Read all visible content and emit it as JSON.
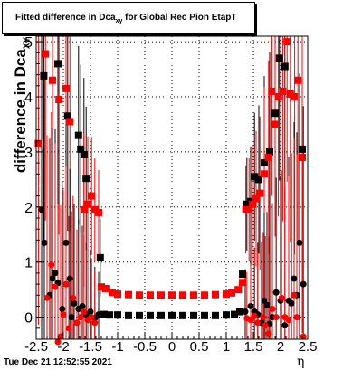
{
  "title": {
    "main": "Fitted difference in Dca",
    "sub": "xy",
    "rest": " for Global Rec Pion EtapT"
  },
  "ylabel": {
    "main": "difference in Dca",
    "sub": "XY"
  },
  "xlabel": "η",
  "timestamp": "Tue Dec 21 12:52:55 2021",
  "chart_data": {
    "type": "scatter",
    "title": "Fitted difference in Dca_xy for Global Rec Pion EtapT",
    "xlabel": "η",
    "ylabel": "difference in Dca_XY",
    "xlim": [
      -2.5,
      2.5
    ],
    "ylim": [
      -0.4,
      5.1
    ],
    "grid": true,
    "x_ticks": [
      "-2.5",
      "-2",
      "-1.5",
      "-1",
      "-0.5",
      "0",
      "0.5",
      "1",
      "1.5",
      "2",
      "2.5"
    ],
    "y_ticks": [
      "0",
      "1",
      "2",
      "3",
      "4",
      "5"
    ],
    "colors": {
      "black": "#000000",
      "red": "#ff0000"
    },
    "series": [
      {
        "marker": "square",
        "color": "#000000",
        "points": [
          [
            -2.36,
            4.38
          ],
          [
            -2.1,
            4.6
          ],
          [
            -1.92,
            3.65
          ],
          [
            -1.72,
            3.3
          ],
          [
            -1.68,
            3.05
          ],
          [
            -1.62,
            2.95
          ],
          [
            -1.58,
            2.52
          ],
          [
            -1.32,
            1.08
          ],
          [
            -1.25,
            0.05
          ],
          [
            -1.15,
            0.04
          ],
          [
            -1.0,
            0.04
          ],
          [
            -0.8,
            0.03
          ],
          [
            -0.6,
            0.03
          ],
          [
            -0.4,
            0.03
          ],
          [
            -0.2,
            0.03
          ],
          [
            0.0,
            0.03
          ],
          [
            0.2,
            0.03
          ],
          [
            0.4,
            0.03
          ],
          [
            0.6,
            0.03
          ],
          [
            0.8,
            0.03
          ],
          [
            1.0,
            0.04
          ],
          [
            1.15,
            0.05
          ],
          [
            1.25,
            0.1
          ],
          [
            1.3,
            0.78
          ],
          [
            1.38,
            2.05
          ],
          [
            1.45,
            2.1
          ],
          [
            1.52,
            2.55
          ],
          [
            1.6,
            2.5
          ],
          [
            1.7,
            2.8
          ],
          [
            1.8,
            3.0
          ],
          [
            1.9,
            3.7
          ],
          [
            1.98,
            4.7
          ],
          [
            2.08,
            4.55
          ],
          [
            2.4,
            3.05
          ]
        ]
      },
      {
        "marker": "square",
        "color": "#ff0000",
        "points": [
          [
            -2.46,
            3.15
          ],
          [
            -2.33,
            4.78
          ],
          [
            -2.2,
            4.3
          ],
          [
            -2.08,
            3.95
          ],
          [
            -1.95,
            4.15
          ],
          [
            -1.88,
            3.55
          ],
          [
            -1.62,
            1.95
          ],
          [
            -1.55,
            2.05
          ],
          [
            -1.48,
            2.2
          ],
          [
            -1.42,
            1.95
          ],
          [
            -1.35,
            1.9
          ],
          [
            -1.3,
            0.55
          ],
          [
            -1.22,
            0.52
          ],
          [
            -1.1,
            0.45
          ],
          [
            -1.0,
            0.42
          ],
          [
            -0.8,
            0.41
          ],
          [
            -0.6,
            0.4
          ],
          [
            -0.4,
            0.4
          ],
          [
            -0.2,
            0.4
          ],
          [
            0.0,
            0.4
          ],
          [
            0.2,
            0.4
          ],
          [
            0.4,
            0.4
          ],
          [
            0.6,
            0.4
          ],
          [
            0.8,
            0.41
          ],
          [
            1.0,
            0.42
          ],
          [
            1.1,
            0.44
          ],
          [
            1.22,
            0.5
          ],
          [
            1.3,
            0.63
          ],
          [
            1.36,
            1.95
          ],
          [
            1.42,
            1.95
          ],
          [
            1.48,
            2.05
          ],
          [
            1.55,
            2.15
          ],
          [
            1.62,
            2.25
          ],
          [
            1.7,
            2.6
          ],
          [
            1.78,
            2.9
          ],
          [
            1.84,
            4.1
          ],
          [
            1.9,
            3.5
          ],
          [
            1.96,
            4.0
          ],
          [
            2.04,
            4.1
          ],
          [
            2.12,
            5.0
          ],
          [
            2.18,
            4.05
          ],
          [
            2.26,
            4.0
          ],
          [
            2.32,
            4.3
          ],
          [
            2.4,
            2.9
          ]
        ]
      },
      {
        "marker": "circle",
        "color": "#000000",
        "points": [
          [
            -2.4,
            1.95
          ],
          [
            -2.35,
            1.35
          ],
          [
            -2.25,
            0.4
          ],
          [
            -2.2,
            0.7
          ],
          [
            -2.15,
            0.8
          ],
          [
            -2.1,
            0.62
          ],
          [
            -2.02,
            0.15
          ],
          [
            -1.95,
            1.35
          ],
          [
            -1.88,
            0.7
          ],
          [
            -1.85,
            0.0
          ],
          [
            -1.8,
            0.25
          ],
          [
            -1.72,
            0.15
          ],
          [
            -1.65,
            0.2
          ],
          [
            -1.58,
            0.05
          ],
          [
            -1.5,
            0.1
          ],
          [
            -1.42,
            -0.02
          ],
          [
            -1.35,
            0.05
          ],
          [
            1.35,
            0.1
          ],
          [
            1.45,
            0.2
          ],
          [
            1.52,
            0.1
          ],
          [
            1.58,
            0.05
          ],
          [
            1.65,
            -0.1
          ],
          [
            1.7,
            0.3
          ],
          [
            1.75,
            0.22
          ],
          [
            1.8,
            -0.12
          ],
          [
            1.85,
            0.0
          ],
          [
            1.92,
            0.45
          ],
          [
            2.0,
            0.3
          ],
          [
            2.08,
            -0.15
          ],
          [
            2.15,
            0.3
          ],
          [
            2.2,
            0.25
          ],
          [
            2.25,
            0.7
          ],
          [
            2.3,
            0.4
          ],
          [
            2.35,
            1.35
          ],
          [
            2.42,
            0.6
          ]
        ]
      },
      {
        "marker": "circle",
        "color": "#ff0000",
        "points": [
          [
            -2.3,
            0.35
          ],
          [
            -2.22,
            0.95
          ],
          [
            -2.15,
            0.55
          ],
          [
            -2.1,
            -0.45
          ],
          [
            -2.05,
            -0.35
          ],
          [
            -2.0,
            0.05
          ],
          [
            -1.95,
            0.6
          ],
          [
            -1.9,
            -0.2
          ],
          [
            -1.82,
            0.35
          ],
          [
            -1.75,
            -0.1
          ],
          [
            -1.68,
            0.0
          ],
          [
            -1.62,
            0.1
          ],
          [
            -1.55,
            -0.05
          ],
          [
            -1.48,
            0.0
          ],
          [
            -1.42,
            -0.1
          ],
          [
            1.38,
            -0.02
          ],
          [
            1.45,
            -0.05
          ],
          [
            1.52,
            0.02
          ],
          [
            1.58,
            -0.1
          ],
          [
            1.68,
            0.0
          ],
          [
            1.72,
            -0.15
          ],
          [
            1.78,
            -0.3
          ],
          [
            1.85,
            0.15
          ],
          [
            1.92,
            0.0
          ],
          [
            2.02,
            0.35
          ],
          [
            2.08,
            0.0
          ],
          [
            2.15,
            -0.05
          ],
          [
            2.25,
            0.4
          ],
          [
            2.3,
            0.0
          ],
          [
            2.42,
            -0.35
          ]
        ]
      }
    ]
  }
}
